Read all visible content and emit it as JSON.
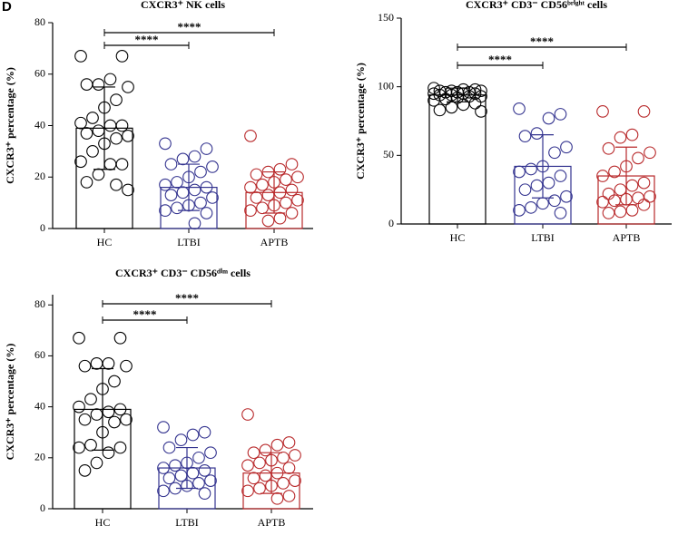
{
  "panel_label": "D",
  "chart_data": [
    {
      "type": "bar",
      "title": "CXCR3⁺ NK cells",
      "ylabel": "CXCR3⁺ percentage (%)",
      "categories": [
        "HC",
        "LTBI",
        "APTB"
      ],
      "values": [
        39,
        16,
        14
      ],
      "errors": [
        16,
        9,
        8
      ],
      "colors": [
        "#000000",
        "#33338f",
        "#b8282a"
      ],
      "points": [
        [
          67,
          67,
          58,
          56,
          56,
          55,
          50,
          47,
          43,
          41,
          40,
          40,
          38,
          37,
          36,
          35,
          33,
          30,
          26,
          25,
          25,
          21,
          18,
          15,
          17
        ],
        [
          33,
          31,
          28,
          27,
          25,
          24,
          22,
          20,
          18,
          17,
          16,
          15,
          14,
          13,
          12,
          10,
          9,
          8,
          7,
          6,
          2
        ],
        [
          36,
          25,
          23,
          22,
          21,
          20,
          19,
          18,
          17,
          16,
          15,
          14,
          13,
          12,
          11,
          10,
          9,
          8,
          7,
          6,
          4,
          3
        ]
      ],
      "ylim": [
        0,
        80
      ],
      "yticks": [
        0,
        20,
        40,
        60,
        80
      ],
      "comparisons": [
        {
          "from": "HC",
          "to": "LTBI",
          "label": "****"
        },
        {
          "from": "HC",
          "to": "APTB",
          "label": "****"
        }
      ]
    },
    {
      "type": "bar",
      "title": "CXCR3⁺ CD3⁻ CD56ᵇʳⁱᵍʰᵗ cells",
      "ylabel": "CXCR3⁺ percentage (%)",
      "categories": [
        "HC",
        "LTBI",
        "APTB"
      ],
      "values": [
        94,
        42,
        35
      ],
      "errors": [
        5,
        23,
        21
      ],
      "colors": [
        "#000000",
        "#33338f",
        "#b8282a"
      ],
      "points": [
        [
          99,
          98,
          98,
          97,
          97,
          97,
          96,
          96,
          96,
          95,
          95,
          95,
          94,
          94,
          93,
          93,
          92,
          91,
          90,
          88,
          87,
          85,
          83,
          82
        ],
        [
          84,
          80,
          77,
          66,
          64,
          56,
          52,
          42,
          40,
          38,
          35,
          30,
          28,
          25,
          20,
          17,
          15,
          12,
          10,
          8
        ],
        [
          82,
          82,
          65,
          63,
          55,
          52,
          48,
          42,
          38,
          35,
          30,
          28,
          25,
          22,
          20,
          19,
          18,
          17,
          16,
          14,
          10,
          9,
          8
        ]
      ],
      "ylim": [
        0,
        150
      ],
      "yticks": [
        0,
        50,
        100,
        150
      ],
      "comparisons": [
        {
          "from": "HC",
          "to": "LTBI",
          "label": "****"
        },
        {
          "from": "HC",
          "to": "APTB",
          "label": "****"
        }
      ]
    },
    {
      "type": "bar",
      "title": "CXCR3⁺ CD3⁻ CD56ᵈⁱᵐ cells",
      "ylabel": "CXCR3⁺ percentage (%)",
      "categories": [
        "HC",
        "LTBI",
        "APTB"
      ],
      "values": [
        39,
        16,
        14
      ],
      "errors": [
        16,
        8,
        8
      ],
      "colors": [
        "#000000",
        "#33338f",
        "#b8282a"
      ],
      "points": [
        [
          67,
          67,
          57,
          57,
          56,
          56,
          50,
          47,
          43,
          40,
          39,
          38,
          37,
          35,
          35,
          34,
          30,
          25,
          24,
          24,
          22,
          18,
          15
        ],
        [
          32,
          30,
          29,
          27,
          24,
          22,
          20,
          18,
          17,
          16,
          15,
          14,
          13,
          12,
          11,
          10,
          9,
          8,
          7,
          6
        ],
        [
          37,
          26,
          25,
          23,
          22,
          21,
          20,
          19,
          18,
          17,
          16,
          14,
          13,
          12,
          11,
          10,
          9,
          8,
          7,
          5,
          4
        ]
      ],
      "ylim": [
        0,
        84
      ],
      "yticks": [
        0,
        20,
        40,
        60,
        80
      ],
      "comparisons": [
        {
          "from": "HC",
          "to": "LTBI",
          "label": "****"
        },
        {
          "from": "HC",
          "to": "APTB",
          "label": "****"
        }
      ]
    }
  ]
}
